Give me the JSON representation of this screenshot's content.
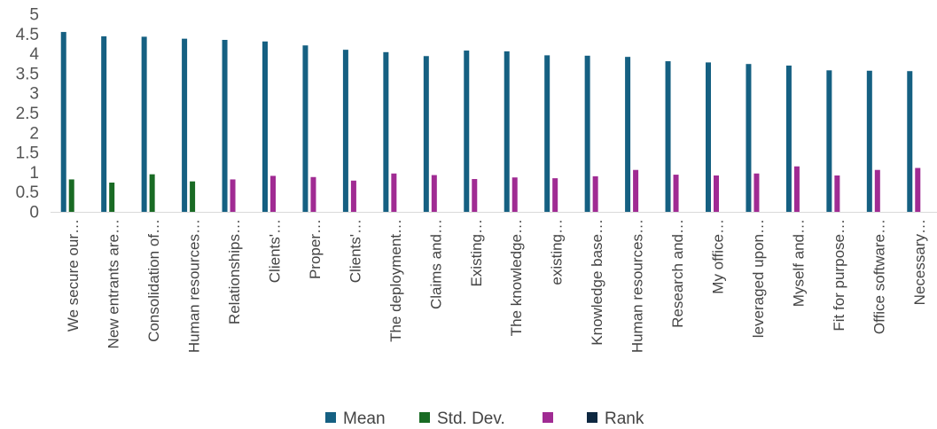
{
  "chart_data": {
    "type": "bar",
    "categories": [
      "We secure our…",
      "New entrants are…",
      "Consolidation of…",
      "Human resources…",
      "Relationships…",
      "Clients'…",
      "Proper…",
      "Clients'…",
      "The deployment…",
      "Claims and…",
      "Existing…",
      "The knowledge…",
      "existing…",
      "Knowledge base…",
      "Human resources…",
      "Research and…",
      "My office…",
      "leveraged upon…",
      "Myself and…",
      "Fit for purpose…",
      "Office software…",
      "Necessary…"
    ],
    "series": [
      {
        "name": "Mean",
        "color": "#156082",
        "values": [
          4.55,
          4.44,
          4.43,
          4.38,
          4.35,
          4.31,
          4.21,
          4.1,
          4.04,
          3.94,
          4.08,
          4.06,
          3.96,
          3.95,
          3.92,
          3.81,
          3.78,
          3.74,
          3.7,
          3.58,
          3.57,
          3.56
        ]
      },
      {
        "name": "Std. Dev.",
        "color": "#196B24",
        "values": [
          0.82,
          0.74,
          0.95,
          0.77,
          null,
          null,
          null,
          null,
          null,
          null,
          null,
          null,
          null,
          null,
          null,
          null,
          null,
          null,
          null,
          null,
          null,
          null
        ]
      },
      {
        "name": "",
        "color": "#A02B93",
        "values": [
          null,
          null,
          null,
          null,
          0.82,
          0.91,
          0.88,
          0.79,
          0.97,
          0.93,
          0.83,
          0.87,
          0.85,
          0.9,
          1.06,
          0.94,
          0.92,
          0.97,
          1.15,
          0.92,
          1.06,
          1.11
        ]
      },
      {
        "name": "Rank",
        "color": "#0E2841",
        "values": [
          null,
          null,
          null,
          null,
          null,
          null,
          null,
          null,
          null,
          null,
          null,
          null,
          null,
          null,
          null,
          null,
          null,
          null,
          null,
          null,
          null,
          null
        ]
      }
    ],
    "yticks": [
      "0",
      "0.5",
      "1",
      "1.5",
      "2",
      "2.5",
      "3",
      "3.5",
      "4",
      "4.5",
      "5"
    ],
    "ylim": [
      0,
      5
    ],
    "grid": false,
    "legend_position": "bottom",
    "title": "",
    "xlabel": "",
    "ylabel": ""
  }
}
